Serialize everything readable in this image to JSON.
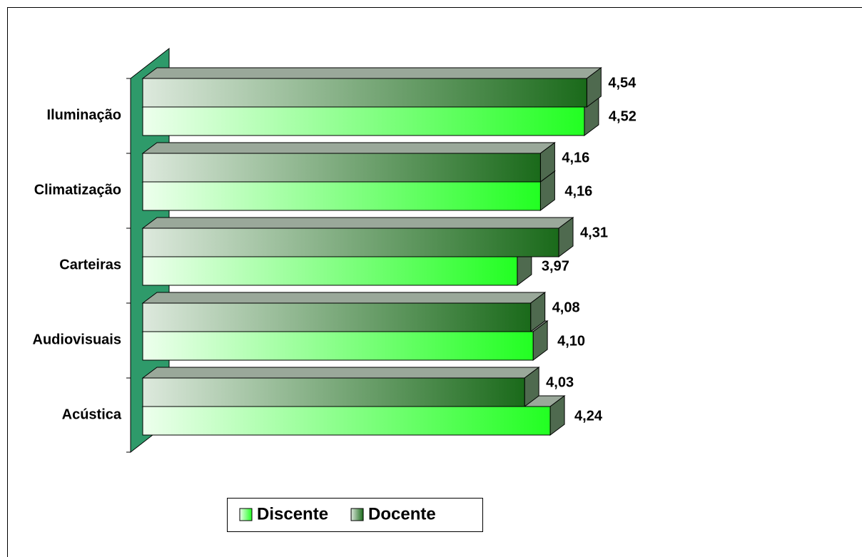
{
  "chart_data": {
    "type": "bar3d_horizontal",
    "categories": [
      "Iluminação",
      "Climatização",
      "Carteiras",
      "Audiovisuais",
      "Acústica"
    ],
    "series": [
      {
        "name": "Discente",
        "color": "#22ff22",
        "values": [
          4.52,
          4.16,
          3.97,
          4.1,
          4.24
        ],
        "value_labels": [
          "4,52",
          "4,16",
          "3,97",
          "4,10",
          "4,24"
        ]
      },
      {
        "name": "Docente",
        "color": "#1a6a1a",
        "values": [
          4.54,
          4.16,
          4.31,
          4.08,
          4.03
        ],
        "value_labels": [
          "4,54",
          "4,16",
          "4,31",
          "4,08",
          "4,03"
        ]
      }
    ],
    "xlim": [
      0.9,
      5
    ],
    "legend": "bottom"
  }
}
